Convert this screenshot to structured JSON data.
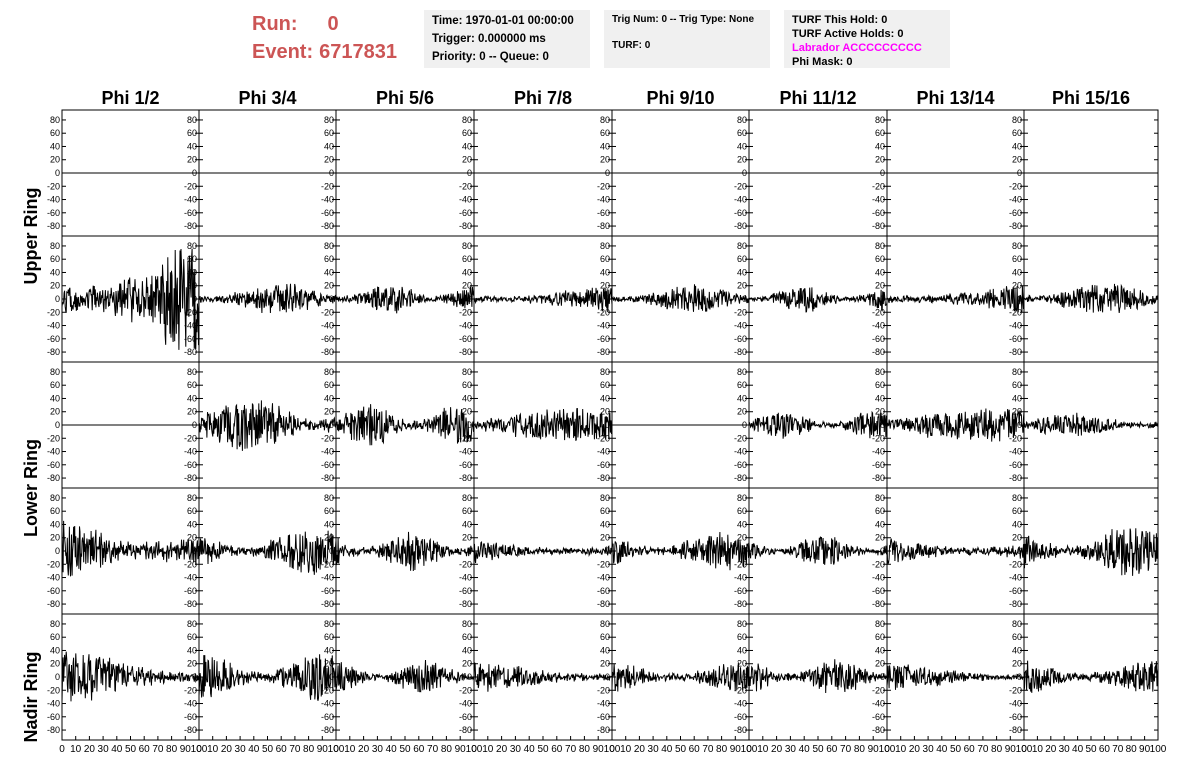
{
  "header": {
    "run_label": "Run:",
    "run_value": "0",
    "event_label": "Event:",
    "event_value": "6717831"
  },
  "info_time": {
    "time": "Time: 1970-01-01 00:00:00",
    "trigger": "Trigger: 0.000000 ms",
    "priority": "Priority: 0 -- Queue: 0"
  },
  "info_trig": {
    "trig": "Trig Num: 0 -- Trig Type: None",
    "turf": "TURF: 0"
  },
  "info_turf": {
    "this_hold": "TURF This Hold: 0",
    "active_holds": "TURF Active Holds: 0",
    "labrador": "Labrador ACCCCCCCCC",
    "phi_mask": "Phi Mask: 0"
  },
  "colors": {
    "run_text": "#cc5555",
    "labrador": "#ff00ff",
    "trace": "#000000",
    "info_bg": "#f0f0f0"
  },
  "chart_data": {
    "type": "line",
    "columns": [
      "Phi 1/2",
      "Phi 3/4",
      "Phi 5/6",
      "Phi 7/8",
      "Phi 9/10",
      "Phi 11/12",
      "Phi 13/14",
      "Phi 15/16"
    ],
    "rows": [
      "Upper Ring",
      "Lower Ring",
      "Nadir Ring"
    ],
    "xlim": [
      0,
      100
    ],
    "ylim": [
      -95,
      95
    ],
    "x_ticks": [
      0,
      10,
      20,
      30,
      40,
      50,
      60,
      70,
      80,
      90,
      100
    ],
    "y_ticks": [
      -80,
      -60,
      -40,
      -20,
      0,
      20,
      40,
      60,
      80
    ],
    "samples": 260,
    "traces": [
      {
        "ring": 0,
        "sub": 0,
        "amp": [
          0,
          0,
          0,
          0,
          0,
          0,
          0,
          0
        ],
        "seed": 11
      },
      {
        "ring": 0,
        "sub": 1,
        "amp": [
          90,
          22,
          22,
          20,
          20,
          20,
          22,
          24
        ],
        "seed": 23
      },
      {
        "ring": 1,
        "sub": 0,
        "amp": [
          0,
          40,
          30,
          24,
          0,
          20,
          24,
          18
        ],
        "seed": 37
      },
      {
        "ring": 1,
        "sub": 1,
        "amp": [
          60,
          32,
          28,
          22,
          28,
          22,
          26,
          36
        ],
        "seed": 53
      },
      {
        "ring": 2,
        "sub": 0,
        "amp": [
          40,
          38,
          24,
          22,
          22,
          26,
          20,
          26
        ],
        "seed": 71
      }
    ]
  }
}
